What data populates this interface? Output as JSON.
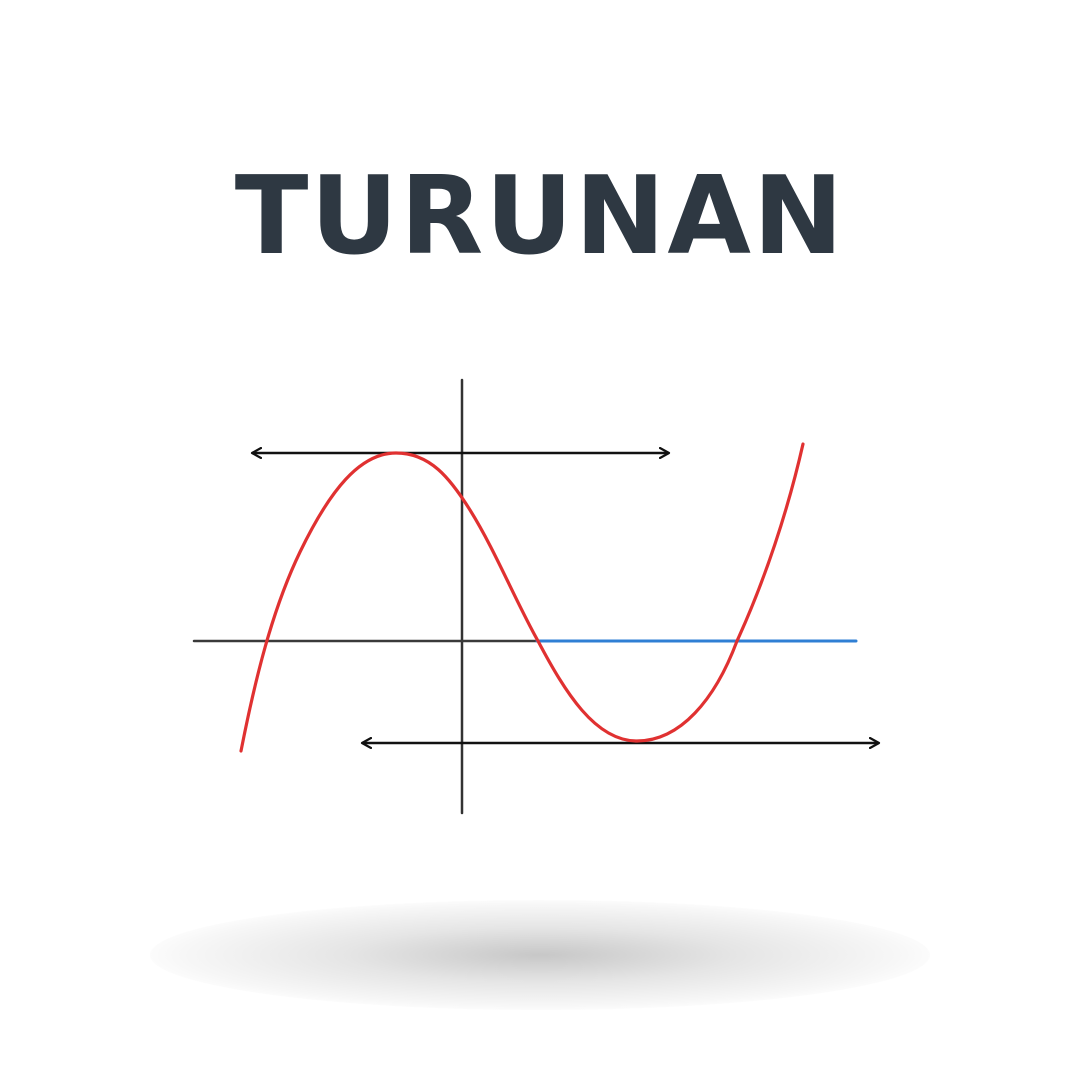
{
  "title": "TURUNAN",
  "colors": {
    "title": "#2e3842",
    "curve": "#e03131",
    "axis": "#333333",
    "highlight": "#2f7fd4",
    "tangent": "#111111"
  },
  "icons": [
    "arrowhead-icon"
  ]
}
